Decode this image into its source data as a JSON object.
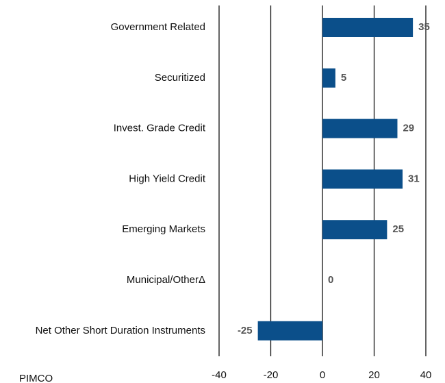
{
  "chart_data": {
    "type": "barh",
    "categories": [
      "Government Related",
      "Securitized",
      "Invest. Grade Credit",
      "High Yield Credit",
      "Emerging Markets",
      "Municipal/OtherΔ",
      "Net Other Short Duration Instruments"
    ],
    "values": [
      35,
      5,
      29,
      31,
      25,
      0,
      -25
    ],
    "color": "#0b4f8a",
    "xlim": [
      -40,
      40
    ],
    "xticks": [
      -40,
      -20,
      0,
      20,
      40
    ],
    "grid": true,
    "source": "PIMCO"
  }
}
